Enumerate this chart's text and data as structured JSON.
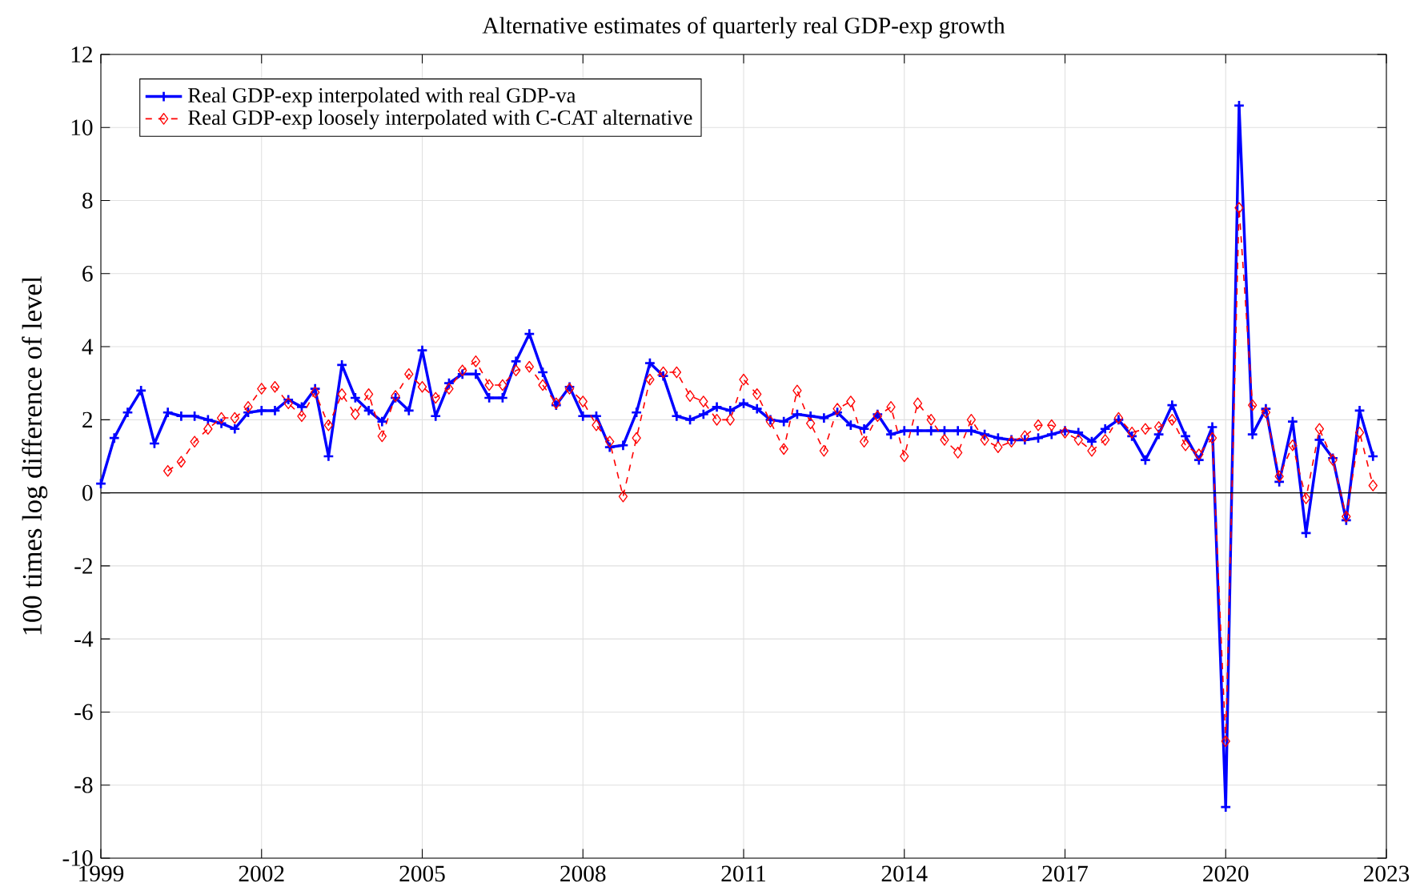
{
  "chart_data": {
    "type": "line",
    "title": "Alternative estimates of quarterly real GDP-exp growth",
    "ylabel": "100 times log difference of level",
    "x": [
      1999.0,
      1999.25,
      1999.5,
      1999.75,
      2000.0,
      2000.25,
      2000.5,
      2000.75,
      2001.0,
      2001.25,
      2001.5,
      2001.75,
      2002.0,
      2002.25,
      2002.5,
      2002.75,
      2003.0,
      2003.25,
      2003.5,
      2003.75,
      2004.0,
      2004.25,
      2004.5,
      2004.75,
      2005.0,
      2005.25,
      2005.5,
      2005.75,
      2006.0,
      2006.25,
      2006.5,
      2006.75,
      2007.0,
      2007.25,
      2007.5,
      2007.75,
      2008.0,
      2008.25,
      2008.5,
      2008.75,
      2009.0,
      2009.25,
      2009.5,
      2009.75,
      2010.0,
      2010.25,
      2010.5,
      2010.75,
      2011.0,
      2011.25,
      2011.5,
      2011.75,
      2012.0,
      2012.25,
      2012.5,
      2012.75,
      2013.0,
      2013.25,
      2013.5,
      2013.75,
      2014.0,
      2014.25,
      2014.5,
      2014.75,
      2015.0,
      2015.25,
      2015.5,
      2015.75,
      2016.0,
      2016.25,
      2016.5,
      2016.75,
      2017.0,
      2017.25,
      2017.5,
      2017.75,
      2018.0,
      2018.25,
      2018.5,
      2018.75,
      2019.0,
      2019.25,
      2019.5,
      2019.75,
      2020.0,
      2020.25,
      2020.5,
      2020.75,
      2021.0,
      2021.25,
      2021.5,
      2021.75,
      2022.0,
      2022.25,
      2022.5,
      2022.75
    ],
    "series": [
      {
        "name": "Real GDP-exp interpolated with real GDP-va",
        "color": "#0000ff",
        "marker": "cross",
        "line_style": "solid",
        "values": [
          0.25,
          1.5,
          2.2,
          2.8,
          1.35,
          2.2,
          2.1,
          2.1,
          2.0,
          1.9,
          1.75,
          2.2,
          2.25,
          2.25,
          2.55,
          2.35,
          2.85,
          1.0,
          3.5,
          2.6,
          2.25,
          1.95,
          2.6,
          2.25,
          3.9,
          2.1,
          3.0,
          3.25,
          3.25,
          2.6,
          2.6,
          3.6,
          4.35,
          3.3,
          2.4,
          2.9,
          2.1,
          2.1,
          1.25,
          1.3,
          2.2,
          3.55,
          3.2,
          2.1,
          2.0,
          2.15,
          2.35,
          2.25,
          2.45,
          2.3,
          2.0,
          1.95,
          2.15,
          2.1,
          2.05,
          2.2,
          1.85,
          1.75,
          2.15,
          1.6,
          1.7,
          1.7,
          1.7,
          1.7,
          1.7,
          1.7,
          1.6,
          1.5,
          1.45,
          1.45,
          1.5,
          1.6,
          1.7,
          1.65,
          1.4,
          1.75,
          2.0,
          1.55,
          0.9,
          1.6,
          2.4,
          1.55,
          0.9,
          1.8,
          -8.6,
          10.6,
          1.6,
          2.3,
          0.3,
          1.95,
          -1.1,
          1.45,
          0.95,
          -0.75,
          2.25,
          1.0
        ]
      },
      {
        "name": "Real GDP-exp loosely interpolated with C-CAT alternative",
        "color": "#ff0000",
        "marker": "diamond",
        "line_style": "dashed",
        "values": [
          null,
          null,
          null,
          null,
          null,
          0.6,
          0.85,
          1.4,
          1.75,
          2.05,
          2.05,
          2.35,
          2.85,
          2.9,
          2.45,
          2.1,
          2.75,
          1.85,
          2.7,
          2.15,
          2.7,
          1.55,
          2.65,
          3.25,
          2.9,
          2.6,
          2.85,
          3.35,
          3.6,
          2.95,
          2.95,
          3.35,
          3.45,
          2.95,
          2.45,
          2.85,
          2.5,
          1.85,
          1.4,
          -0.1,
          1.5,
          3.1,
          3.3,
          3.3,
          2.65,
          2.5,
          2.0,
          2.0,
          3.1,
          2.7,
          1.95,
          1.2,
          2.8,
          1.9,
          1.15,
          2.3,
          2.5,
          1.4,
          2.1,
          2.35,
          1.0,
          2.45,
          2.0,
          1.45,
          1.1,
          2.0,
          1.45,
          1.25,
          1.4,
          1.55,
          1.85,
          1.85,
          1.65,
          1.45,
          1.15,
          1.45,
          2.05,
          1.65,
          1.75,
          1.8,
          2.0,
          1.3,
          1.05,
          1.5,
          -6.8,
          7.8,
          2.4,
          2.2,
          0.45,
          1.3,
          -0.15,
          1.75,
          0.9,
          -0.65,
          1.65,
          0.2
        ]
      }
    ],
    "xlim": [
      1999,
      2023
    ],
    "xticks": [
      1999,
      2002,
      2005,
      2008,
      2011,
      2014,
      2017,
      2020,
      2023
    ],
    "ylim": [
      -10,
      12
    ],
    "yticks": [
      -10,
      -8,
      -6,
      -4,
      -2,
      0,
      2,
      4,
      6,
      8,
      10,
      12
    ],
    "ref_lines": [
      {
        "axis": "y",
        "value": 0,
        "color": "#000000"
      }
    ],
    "grid": true,
    "legend": "top left"
  }
}
